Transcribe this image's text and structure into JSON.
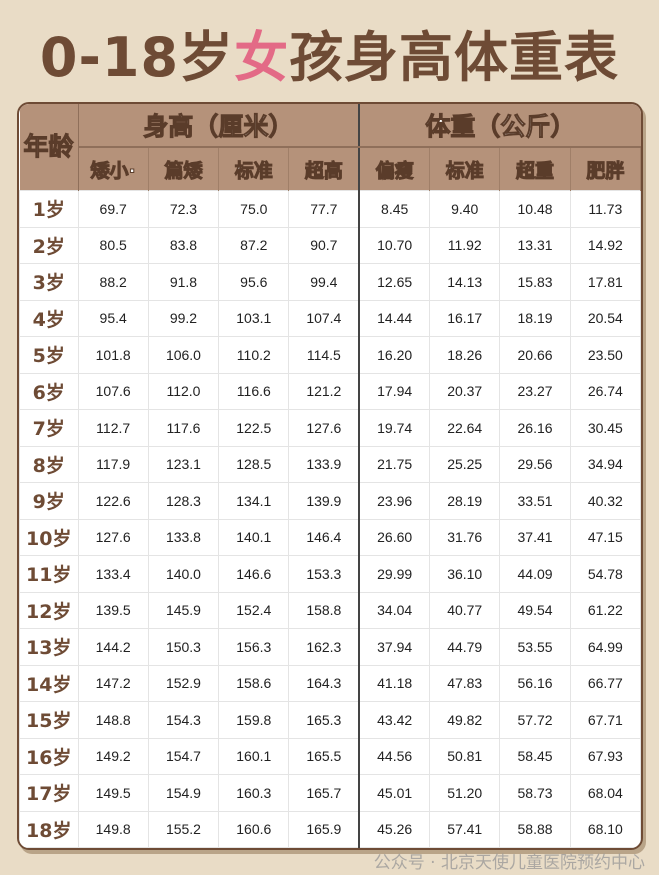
{
  "title": {
    "prefix": "0-18岁",
    "highlight": "女",
    "suffix": "孩身高体重表"
  },
  "colors": {
    "title_brown": "#6e4b35",
    "title_pink": "#e36a86",
    "header_bg": "#b5927a",
    "background": "#e9dcc6"
  },
  "header": {
    "age": "年龄",
    "height_group": "身高（厘米）",
    "weight_group": "体重（公斤）",
    "height_cols": [
      "矮小·",
      "篇矮",
      "标准",
      "超高"
    ],
    "weight_cols": [
      "偏瘦",
      "标准",
      "超重",
      "肥胖"
    ]
  },
  "rows": [
    {
      "age": "1岁",
      "values": [
        "69.7",
        "72.3",
        "75.0",
        "77.7",
        "8.45",
        "9.40",
        "10.48",
        "11.73"
      ]
    },
    {
      "age": "2岁",
      "values": [
        "80.5",
        "83.8",
        "87.2",
        "90.7",
        "10.70",
        "11.92",
        "13.31",
        "14.92"
      ]
    },
    {
      "age": "3岁",
      "values": [
        "88.2",
        "91.8",
        "95.6",
        "99.4",
        "12.65",
        "14.13",
        "15.83",
        "17.81"
      ]
    },
    {
      "age": "4岁",
      "values": [
        "95.4",
        "99.2",
        "103.1",
        "107.4",
        "14.44",
        "16.17",
        "18.19",
        "20.54"
      ]
    },
    {
      "age": "5岁",
      "values": [
        "101.8",
        "106.0",
        "110.2",
        "114.5",
        "16.20",
        "18.26",
        "20.66",
        "23.50"
      ]
    },
    {
      "age": "6岁",
      "values": [
        "107.6",
        "112.0",
        "116.6",
        "121.2",
        "17.94",
        "20.37",
        "23.27",
        "26.74"
      ]
    },
    {
      "age": "7岁",
      "values": [
        "112.7",
        "117.6",
        "122.5",
        "127.6",
        "19.74",
        "22.64",
        "26.16",
        "30.45"
      ]
    },
    {
      "age": "8岁",
      "values": [
        "117.9",
        "123.1",
        "128.5",
        "133.9",
        "21.75",
        "25.25",
        "29.56",
        "34.94"
      ]
    },
    {
      "age": "9岁",
      "values": [
        "122.6",
        "128.3",
        "134.1",
        "139.9",
        "23.96",
        "28.19",
        "33.51",
        "40.32"
      ]
    },
    {
      "age": "10岁",
      "values": [
        "127.6",
        "133.8",
        "140.1",
        "146.4",
        "26.60",
        "31.76",
        "37.41",
        "47.15"
      ]
    },
    {
      "age": "11岁",
      "values": [
        "133.4",
        "140.0",
        "146.6",
        "153.3",
        "29.99",
        "36.10",
        "44.09",
        "54.78"
      ]
    },
    {
      "age": "12岁",
      "values": [
        "139.5",
        "145.9",
        "152.4",
        "158.8",
        "34.04",
        "40.77",
        "49.54",
        "61.22"
      ]
    },
    {
      "age": "13岁",
      "values": [
        "144.2",
        "150.3",
        "156.3",
        "162.3",
        "37.94",
        "44.79",
        "53.55",
        "64.99"
      ]
    },
    {
      "age": "14岁",
      "values": [
        "147.2",
        "152.9",
        "158.6",
        "164.3",
        "41.18",
        "47.83",
        "56.16",
        "66.77"
      ]
    },
    {
      "age": "15岁",
      "values": [
        "148.8",
        "154.3",
        "159.8",
        "165.3",
        "43.42",
        "49.82",
        "57.72",
        "67.71"
      ]
    },
    {
      "age": "16岁",
      "values": [
        "149.2",
        "154.7",
        "160.1",
        "165.5",
        "44.56",
        "50.81",
        "58.45",
        "67.93"
      ]
    },
    {
      "age": "17岁",
      "values": [
        "149.5",
        "154.9",
        "160.3",
        "165.7",
        "45.01",
        "51.20",
        "58.73",
        "68.04"
      ]
    },
    {
      "age": "18岁",
      "values": [
        "149.8",
        "155.2",
        "160.6",
        "165.9",
        "45.26",
        "57.41",
        "58.88",
        "68.10"
      ]
    }
  ],
  "watermark": "公众号 · 北京天使儿童医院预约中心"
}
